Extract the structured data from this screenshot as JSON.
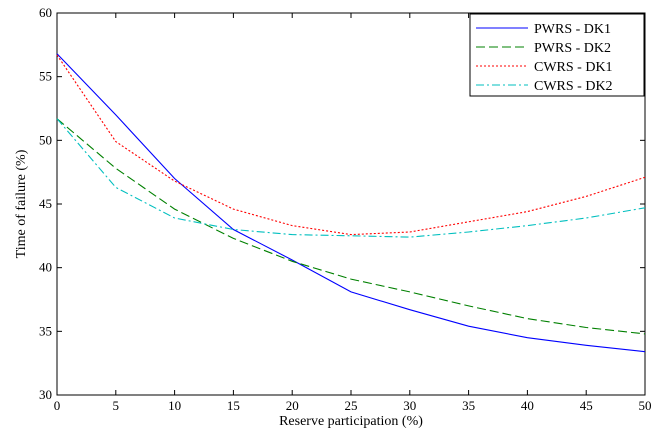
{
  "chart_data": {
    "type": "line",
    "title": "",
    "xlabel": "Reserve participation (%)",
    "ylabel": "Time of failure (%)",
    "xlim": [
      0,
      50
    ],
    "ylim": [
      30,
      60
    ],
    "xticks": [
      0,
      5,
      10,
      15,
      20,
      25,
      30,
      35,
      40,
      45,
      50
    ],
    "yticks": [
      30,
      35,
      40,
      45,
      50,
      55,
      60
    ],
    "grid": false,
    "legend_position": "top-right",
    "x": [
      0,
      5,
      10,
      15,
      20,
      25,
      30,
      35,
      40,
      45,
      50
    ],
    "series": [
      {
        "name": "PWRS - DK1",
        "color": "#0000ff",
        "dash": "solid",
        "values": [
          56.8,
          52.0,
          47.0,
          43.0,
          40.6,
          38.1,
          36.7,
          35.4,
          34.5,
          33.9,
          33.4
        ]
      },
      {
        "name": "PWRS - DK2",
        "color": "#008000",
        "dash": "dashed",
        "values": [
          51.7,
          47.8,
          44.6,
          42.3,
          40.5,
          39.1,
          38.1,
          37.0,
          36.0,
          35.3,
          34.8
        ]
      },
      {
        "name": "CWRS - DK1",
        "color": "#ff0000",
        "dash": "dotted",
        "values": [
          56.7,
          49.9,
          46.8,
          44.6,
          43.3,
          42.6,
          42.8,
          43.6,
          44.4,
          45.6,
          47.1
        ]
      },
      {
        "name": "CWRS - DK2",
        "color": "#00bfbf",
        "dash": "dashdot",
        "values": [
          51.7,
          46.3,
          43.9,
          43.0,
          42.6,
          42.5,
          42.4,
          42.8,
          43.3,
          43.9,
          44.7
        ]
      }
    ]
  }
}
